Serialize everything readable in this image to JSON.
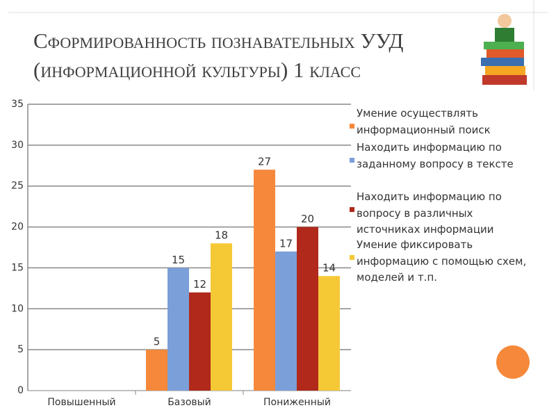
{
  "chart_data": {
    "type": "bar",
    "title": "Сформированность познавательных УУД (информационной культуры) 1 класс",
    "categories": [
      "Повышенный",
      "Базовый",
      "Пониженный"
    ],
    "series": [
      {
        "name": "Умение осуществлять информационный поиск",
        "color": "#f5883a",
        "values": [
          null,
          5,
          27
        ]
      },
      {
        "name": "Находить информацию по заданному вопросу в тексте",
        "color": "#7b9fd8",
        "values": [
          null,
          15,
          17
        ]
      },
      {
        "name": "Находить информацию по вопросу в различных источниках информации",
        "color": "#b0291b",
        "values": [
          null,
          12,
          20
        ]
      },
      {
        "name": "Умение фиксировать информацию с помощью схем, моделей и т.п.",
        "color": "#f5c936",
        "values": [
          null,
          18,
          14
        ]
      }
    ],
    "ylim": [
      0,
      35
    ],
    "yticks": [
      0,
      5,
      10,
      15,
      20,
      25,
      30,
      35
    ],
    "grid": true
  }
}
